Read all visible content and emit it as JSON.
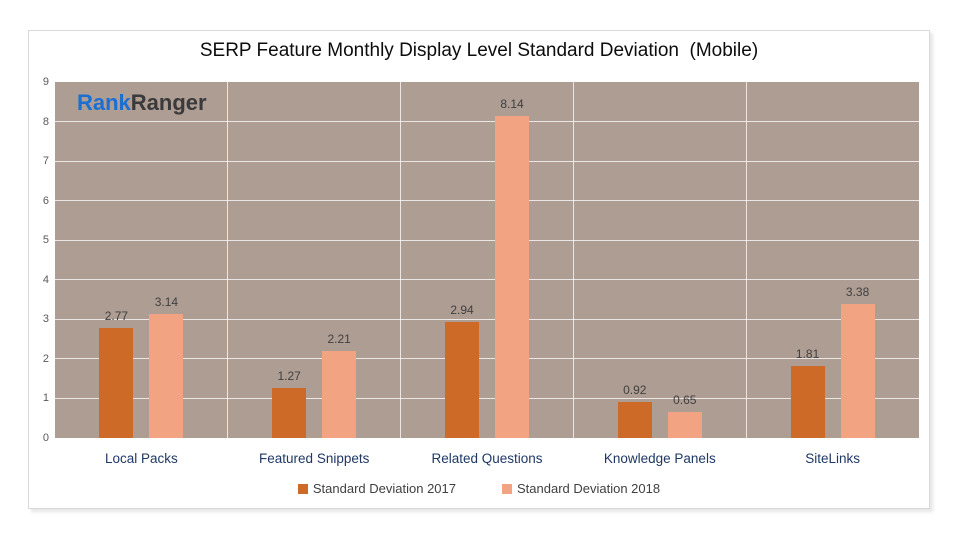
{
  "logo": {
    "part1": "Rank",
    "part2": "Ranger"
  },
  "chart_data": {
    "type": "bar",
    "title": "SERP Feature Monthly Display Level Standard Deviation  (Mobile)",
    "categories": [
      "Local Packs",
      "Featured Snippets",
      "Related Questions",
      "Knowledge Panels",
      "SiteLinks"
    ],
    "series": [
      {
        "name": "Standard Deviation 2017",
        "color": "#CD6A28",
        "values": [
          2.77,
          1.27,
          2.94,
          0.92,
          1.81
        ]
      },
      {
        "name": "Standard Deviation 2018",
        "color": "#F2A482",
        "values": [
          3.14,
          2.21,
          8.14,
          0.65,
          3.38
        ]
      }
    ],
    "xlabel": "",
    "ylabel": "",
    "ylim": [
      0,
      9
    ],
    "ytick_step": 1,
    "grid": true,
    "legend_position": "bottom",
    "value_labels_decimals": 2
  },
  "colors": {
    "plot_background": "#AE9D93",
    "gridline": "rgba(255,255,255,0.75)",
    "category_label": "#1F3864",
    "tick_label": "#595959",
    "value_label": "#404040",
    "legend_text": "#404040",
    "title_text": "#0D0D0D",
    "chart_border": "#D9D9D9",
    "logo_blue": "#1B6FD2",
    "logo_dark": "#3A393B"
  }
}
